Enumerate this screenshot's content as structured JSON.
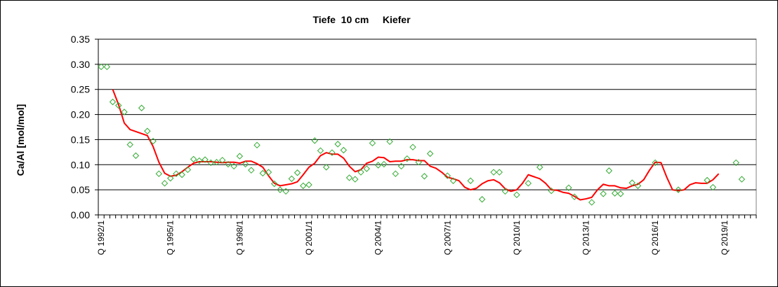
{
  "chart_data": {
    "type": "scatter",
    "title": "Tiefe  10 cm     Kiefer",
    "xlabel": "",
    "ylabel": "Ca/Al [mol/mol]",
    "ylim": [
      0,
      0.35
    ],
    "yticks": [
      "0.00",
      "0.05",
      "0.10",
      "0.15",
      "0.20",
      "0.25",
      "0.30",
      "0.35"
    ],
    "grid": true,
    "x_unit": "quarter",
    "x_range": [
      "1992/1",
      "2020/2"
    ],
    "x_tick_labels": [
      {
        "label": "Q 1992/1",
        "q": 0
      },
      {
        "label": "Q 1995/1",
        "q": 12
      },
      {
        "label": "Q 1998/1",
        "q": 24
      },
      {
        "label": "Q 2001/1",
        "q": 36
      },
      {
        "label": "Q 2004/1",
        "q": 48
      },
      {
        "label": "Q 2007/1",
        "q": 60
      },
      {
        "label": "Q 2010/1",
        "q": 72
      },
      {
        "label": "Q 2013/1",
        "q": 84
      },
      {
        "label": "Q 2016/1",
        "q": 96
      },
      {
        "label": "Q 2019/1",
        "q": 108
      }
    ],
    "colors": {
      "points": "#33aa33",
      "trend": "#ff0000",
      "plot_bg": "#ffffff",
      "grid": "#000000"
    },
    "series": [
      {
        "kind": "scatter",
        "marker": "diamond-open",
        "points": [
          [
            "1992/1",
            0.295
          ],
          [
            "1992/2",
            0.295
          ],
          [
            "1992/3",
            0.225
          ],
          [
            "1992/4",
            0.218
          ],
          [
            "1993/1",
            0.205
          ],
          [
            "1993/2",
            0.14
          ],
          [
            "1993/3",
            0.118
          ],
          [
            "1993/4",
            0.213
          ],
          [
            "1994/1",
            0.167
          ],
          [
            "1994/2",
            0.147
          ],
          [
            "1994/3",
            0.082
          ],
          [
            "1994/4",
            0.063
          ],
          [
            "1995/1",
            0.073
          ],
          [
            "1995/2",
            0.082
          ],
          [
            "1995/3",
            0.08
          ],
          [
            "1995/4",
            0.09
          ],
          [
            "1996/1",
            0.111
          ],
          [
            "1996/2",
            0.108
          ],
          [
            "1996/3",
            0.11
          ],
          [
            "1996/4",
            0.104
          ],
          [
            "1997/1",
            0.105
          ],
          [
            "1997/2",
            0.109
          ],
          [
            "1997/3",
            0.101
          ],
          [
            "1997/4",
            0.097
          ],
          [
            "1998/1",
            0.117
          ],
          [
            "1998/2",
            0.101
          ],
          [
            "1998/3",
            0.089
          ],
          [
            "1998/4",
            0.139
          ],
          [
            "1999/1",
            0.083
          ],
          [
            "1999/2",
            0.085
          ],
          [
            "1999/3",
            0.062
          ],
          [
            "1999/4",
            0.05
          ],
          [
            "2000/1",
            0.047
          ],
          [
            "2000/2",
            0.072
          ],
          [
            "2000/3",
            0.084
          ],
          [
            "2000/4",
            0.058
          ],
          [
            "2001/1",
            0.06
          ],
          [
            "2001/2",
            0.148
          ],
          [
            "2001/3",
            0.128
          ],
          [
            "2001/4",
            0.095
          ],
          [
            "2002/1",
            0.124
          ],
          [
            "2002/2",
            0.141
          ],
          [
            "2002/3",
            0.129
          ],
          [
            "2002/4",
            0.074
          ],
          [
            "2003/1",
            0.071
          ],
          [
            "2003/2",
            0.085
          ],
          [
            "2003/3",
            0.092
          ],
          [
            "2003/4",
            0.143
          ],
          [
            "2004/1",
            0.099
          ],
          [
            "2004/2",
            0.101
          ],
          [
            "2004/3",
            0.146
          ],
          [
            "2004/4",
            0.082
          ],
          [
            "2005/1",
            0.097
          ],
          [
            "2005/2",
            0.112
          ],
          [
            "2005/3",
            0.135
          ],
          [
            "2005/4",
            0.105
          ],
          [
            "2006/1",
            0.077
          ],
          [
            "2006/2",
            0.122
          ],
          [
            "2007/1",
            0.078
          ],
          [
            "2007/2",
            0.068
          ],
          [
            "2008/1",
            0.068
          ],
          [
            "2008/3",
            0.031
          ],
          [
            "2009/1",
            0.085
          ],
          [
            "2009/2",
            0.085
          ],
          [
            "2009/3",
            0.047
          ],
          [
            "2010/1",
            0.04
          ],
          [
            "2010/3",
            0.063
          ],
          [
            "2011/1",
            0.095
          ],
          [
            "2011/3",
            0.048
          ],
          [
            "2012/2",
            0.054
          ],
          [
            "2012/3",
            0.036
          ],
          [
            "2013/2",
            0.025
          ],
          [
            "2013/4",
            0.042
          ],
          [
            "2014/1",
            0.088
          ],
          [
            "2014/2",
            0.043
          ],
          [
            "2014/3",
            0.042
          ],
          [
            "2015/1",
            0.064
          ],
          [
            "2015/2",
            0.058
          ],
          [
            "2016/1",
            0.104
          ],
          [
            "2017/1",
            0.05
          ],
          [
            "2018/2",
            0.069
          ],
          [
            "2018/3",
            0.055
          ],
          [
            "2019/3",
            0.104
          ],
          [
            "2019/4",
            0.071
          ]
        ]
      },
      {
        "kind": "line",
        "points": [
          [
            "1992/3",
            0.25
          ],
          [
            "1992/4",
            0.22
          ],
          [
            "1993/1",
            0.183
          ],
          [
            "1993/2",
            0.17
          ],
          [
            "1993/3",
            0.166
          ],
          [
            "1993/4",
            0.162
          ],
          [
            "1994/1",
            0.158
          ],
          [
            "1994/2",
            0.136
          ],
          [
            "1994/3",
            0.105
          ],
          [
            "1994/4",
            0.083
          ],
          [
            "1995/1",
            0.077
          ],
          [
            "1995/2",
            0.079
          ],
          [
            "1995/3",
            0.086
          ],
          [
            "1995/4",
            0.095
          ],
          [
            "1996/1",
            0.103
          ],
          [
            "1996/2",
            0.106
          ],
          [
            "1996/3",
            0.106
          ],
          [
            "1996/4",
            0.106
          ],
          [
            "1997/1",
            0.105
          ],
          [
            "1997/2",
            0.104
          ],
          [
            "1997/3",
            0.105
          ],
          [
            "1997/4",
            0.105
          ],
          [
            "1998/1",
            0.103
          ],
          [
            "1998/2",
            0.107
          ],
          [
            "1998/3",
            0.107
          ],
          [
            "1998/4",
            0.102
          ],
          [
            "1999/1",
            0.095
          ],
          [
            "1999/2",
            0.078
          ],
          [
            "1999/3",
            0.063
          ],
          [
            "1999/4",
            0.058
          ],
          [
            "2000/1",
            0.06
          ],
          [
            "2000/2",
            0.062
          ],
          [
            "2000/3",
            0.066
          ],
          [
            "2000/4",
            0.08
          ],
          [
            "2001/1",
            0.095
          ],
          [
            "2001/2",
            0.103
          ],
          [
            "2001/3",
            0.118
          ],
          [
            "2001/4",
            0.124
          ],
          [
            "2002/1",
            0.121
          ],
          [
            "2002/2",
            0.121
          ],
          [
            "2002/3",
            0.113
          ],
          [
            "2002/4",
            0.097
          ],
          [
            "2003/1",
            0.086
          ],
          [
            "2003/2",
            0.09
          ],
          [
            "2003/3",
            0.103
          ],
          [
            "2003/4",
            0.107
          ],
          [
            "2004/1",
            0.115
          ],
          [
            "2004/2",
            0.114
          ],
          [
            "2004/3",
            0.106
          ],
          [
            "2004/4",
            0.107
          ],
          [
            "2005/1",
            0.107
          ],
          [
            "2005/2",
            0.11
          ],
          [
            "2005/3",
            0.11
          ],
          [
            "2005/4",
            0.108
          ],
          [
            "2006/1",
            0.108
          ],
          [
            "2006/2",
            0.097
          ],
          [
            "2006/3",
            0.093
          ],
          [
            "2006/4",
            0.085
          ],
          [
            "2007/1",
            0.075
          ],
          [
            "2007/2",
            0.072
          ],
          [
            "2007/3",
            0.068
          ],
          [
            "2007/4",
            0.055
          ],
          [
            "2008/1",
            0.05
          ],
          [
            "2008/2",
            0.053
          ],
          [
            "2008/3",
            0.062
          ],
          [
            "2008/4",
            0.068
          ],
          [
            "2009/1",
            0.07
          ],
          [
            "2009/2",
            0.064
          ],
          [
            "2009/3",
            0.052
          ],
          [
            "2009/4",
            0.047
          ],
          [
            "2010/1",
            0.05
          ],
          [
            "2010/2",
            0.063
          ],
          [
            "2010/3",
            0.08
          ],
          [
            "2010/4",
            0.076
          ],
          [
            "2011/1",
            0.072
          ],
          [
            "2011/2",
            0.063
          ],
          [
            "2011/3",
            0.05
          ],
          [
            "2011/4",
            0.049
          ],
          [
            "2012/1",
            0.045
          ],
          [
            "2012/2",
            0.043
          ],
          [
            "2012/3",
            0.037
          ],
          [
            "2012/4",
            0.03
          ],
          [
            "2013/1",
            0.032
          ],
          [
            "2013/2",
            0.035
          ],
          [
            "2013/3",
            0.05
          ],
          [
            "2013/4",
            0.061
          ],
          [
            "2014/1",
            0.058
          ],
          [
            "2014/2",
            0.058
          ],
          [
            "2014/3",
            0.054
          ],
          [
            "2014/4",
            0.053
          ],
          [
            "2015/1",
            0.058
          ],
          [
            "2015/2",
            0.061
          ],
          [
            "2015/3",
            0.07
          ],
          [
            "2015/4",
            0.089
          ],
          [
            "2016/1",
            0.105
          ],
          [
            "2016/2",
            0.104
          ],
          [
            "2016/3",
            0.075
          ],
          [
            "2016/4",
            0.05
          ],
          [
            "2017/1",
            0.048
          ],
          [
            "2017/2",
            0.05
          ],
          [
            "2017/3",
            0.06
          ],
          [
            "2017/4",
            0.064
          ],
          [
            "2018/1",
            0.063
          ],
          [
            "2018/2",
            0.063
          ],
          [
            "2018/3",
            0.07
          ],
          [
            "2018/4",
            0.082
          ]
        ]
      }
    ]
  }
}
